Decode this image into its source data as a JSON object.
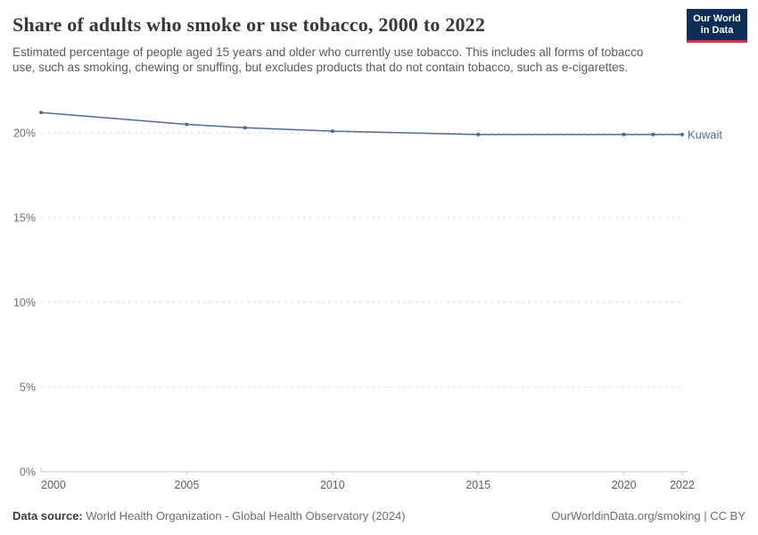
{
  "header": {
    "title": "Share of adults who smoke or use tobacco, 2000 to 2022",
    "subtitle": "Estimated percentage of people aged 15 years and older who currently use tobacco. This includes all forms of tobacco use, such as smoking, chewing or snuffing, but excludes products that do not contain tobacco, such as e-cigarettes.",
    "logo": {
      "line1": "Our World",
      "line2": "in Data",
      "bg_color": "#0d2e54",
      "accent_color": "#d0374b"
    }
  },
  "chart_data": {
    "type": "line",
    "title": "Share of adults who smoke or use tobacco, 2000 to 2022",
    "series": [
      {
        "name": "Kuwait",
        "color": "#4c6a9c",
        "x": [
          2000,
          2005,
          2007,
          2010,
          2015,
          2020,
          2021,
          2022
        ],
        "values": [
          21.2,
          20.5,
          20.3,
          20.1,
          19.9,
          19.9,
          19.9,
          19.9
        ]
      }
    ],
    "xlabel": "",
    "ylabel": "",
    "xlim": [
      2000,
      2022
    ],
    "ylim": [
      0,
      21.5
    ],
    "yticks": [
      0,
      5,
      10,
      15,
      20
    ],
    "ytick_labels": [
      "0%",
      "5%",
      "10%",
      "15%",
      "20%"
    ],
    "xticks": [
      2000,
      2005,
      2010,
      2015,
      2020,
      2022
    ],
    "xtick_labels": [
      "2000",
      "2005",
      "2010",
      "2015",
      "2020",
      "2022"
    ],
    "grid": "horizontal-dashed",
    "legend_position": "end-of-line",
    "end_label": "Kuwait",
    "grid_color": "#d8d8d8",
    "axis_color": "#c4c4c4",
    "tick_label_color": "#6f6f6f"
  },
  "footer": {
    "source_label": "Data source:",
    "source_text": " World Health Organization - Global Health Observatory (2024)",
    "attribution": "OurWorldinData.org/smoking | CC BY"
  }
}
